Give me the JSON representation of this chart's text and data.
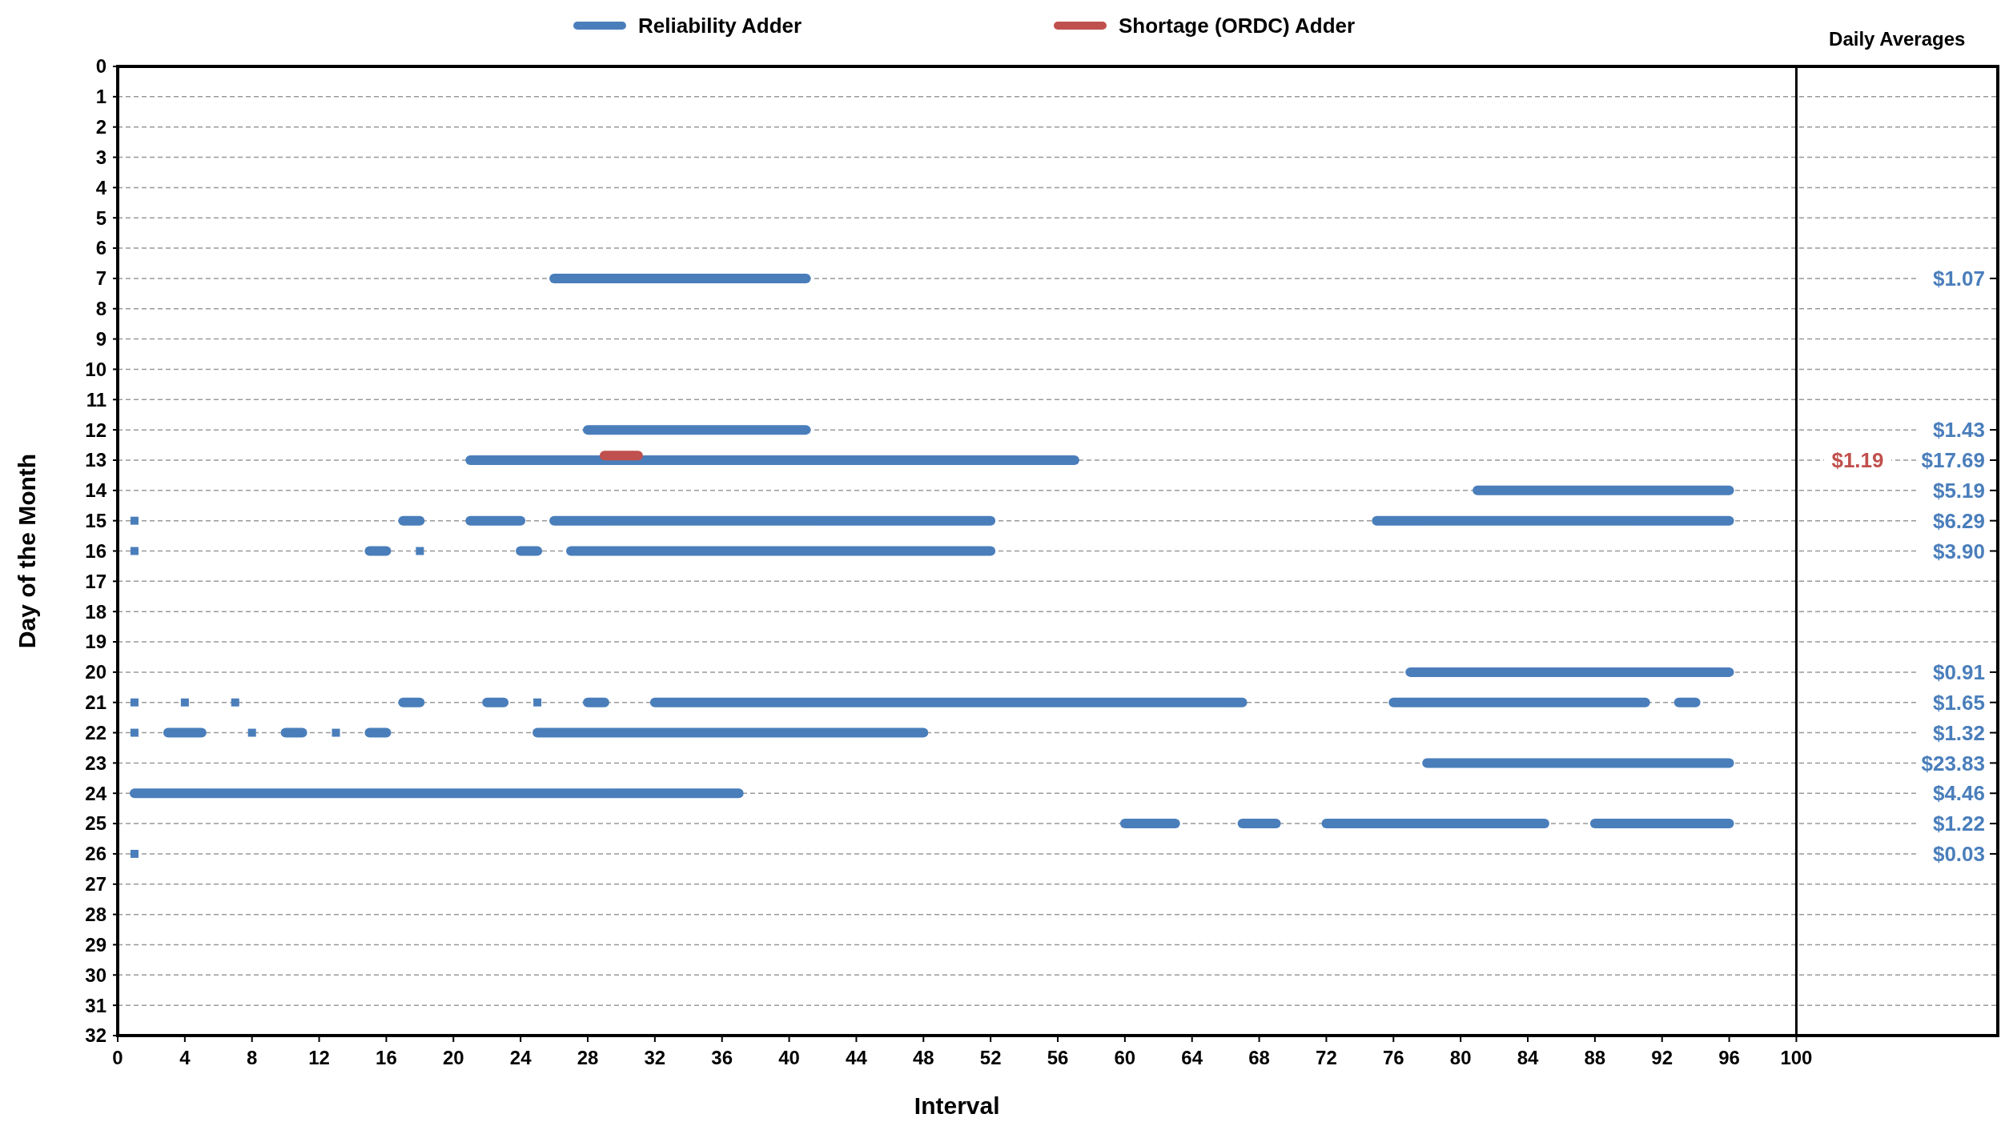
{
  "chart_data": {
    "type": "line",
    "xlabel": "Interval",
    "ylabel": "Day of the Month",
    "xlim": [
      0,
      112
    ],
    "xticks": [
      0,
      4,
      8,
      12,
      16,
      20,
      24,
      28,
      32,
      36,
      40,
      44,
      48,
      52,
      56,
      60,
      64,
      68,
      72,
      76,
      80,
      84,
      88,
      92,
      96,
      100
    ],
    "ylim": [
      32,
      0
    ],
    "yticks": [
      0,
      1,
      2,
      3,
      4,
      5,
      6,
      7,
      8,
      9,
      10,
      11,
      12,
      13,
      14,
      15,
      16,
      17,
      18,
      19,
      20,
      21,
      22,
      23,
      24,
      25,
      26,
      27,
      28,
      29,
      30,
      31,
      32
    ],
    "y2_categories": [
      null,
      null,
      null,
      null,
      null,
      null,
      null,
      "$1.07",
      null,
      null,
      null,
      null,
      "$1.43",
      "$17.69",
      "$5.19",
      "$6.29",
      "$3.90",
      null,
      null,
      null,
      "$0.91",
      "$1.65",
      "$1.32",
      "$23.83",
      "$4.46",
      "$1.22",
      "$0.03",
      null,
      null,
      null,
      null,
      null,
      null
    ],
    "annotations": [
      "$1.19"
    ],
    "grid": "y",
    "legend": "top",
    "line_style": "solid",
    "ref_lines": [
      {
        "axis": "x",
        "value": 100,
        "label": "Daily Averages",
        "color": "#000000"
      }
    ],
    "series": [
      {
        "name": "Reliability Adder",
        "color": "#4a7ebb",
        "x": [
          26,
          41
        ],
        "values": [
          7,
          7
        ]
      },
      {
        "color": "#4a7ebb",
        "x": [
          28,
          41
        ],
        "values": [
          12,
          12
        ]
      },
      {
        "color": "#4a7ebb",
        "x": [
          21,
          57
        ],
        "values": [
          13,
          13
        ]
      },
      {
        "color": "#4a7ebb",
        "x": [
          81,
          96
        ],
        "values": [
          14,
          14
        ]
      },
      {
        "color": "#4a7ebb",
        "x": [
          17,
          18
        ],
        "values": [
          15,
          15
        ]
      },
      {
        "color": "#4a7ebb",
        "x": [
          21,
          24
        ],
        "values": [
          15,
          15
        ]
      },
      {
        "color": "#4a7ebb",
        "x": [
          26,
          52
        ],
        "values": [
          15,
          15
        ]
      },
      {
        "color": "#4a7ebb",
        "x": [
          75,
          96
        ],
        "values": [
          15,
          15
        ]
      },
      {
        "color": "#4a7ebb",
        "x": [
          15,
          16
        ],
        "values": [
          16,
          16
        ]
      },
      {
        "color": "#4a7ebb",
        "x": [
          24,
          25
        ],
        "values": [
          16,
          16
        ]
      },
      {
        "color": "#4a7ebb",
        "x": [
          27,
          52
        ],
        "values": [
          16,
          16
        ]
      },
      {
        "color": "#4a7ebb",
        "x": [
          77,
          96
        ],
        "values": [
          20,
          20
        ]
      },
      {
        "color": "#4a7ebb",
        "x": [
          17,
          18
        ],
        "values": [
          21,
          21
        ]
      },
      {
        "color": "#4a7ebb",
        "x": [
          22,
          23
        ],
        "values": [
          21,
          21
        ]
      },
      {
        "color": "#4a7ebb",
        "x": [
          28,
          29
        ],
        "values": [
          21,
          21
        ]
      },
      {
        "color": "#4a7ebb",
        "x": [
          32,
          67
        ],
        "values": [
          21,
          21
        ]
      },
      {
        "color": "#4a7ebb",
        "x": [
          76,
          91
        ],
        "values": [
          21,
          21
        ]
      },
      {
        "color": "#4a7ebb",
        "x": [
          93,
          94
        ],
        "values": [
          21,
          21
        ]
      },
      {
        "color": "#4a7ebb",
        "x": [
          3,
          5
        ],
        "values": [
          22,
          22
        ]
      },
      {
        "color": "#4a7ebb",
        "x": [
          10,
          11
        ],
        "values": [
          22,
          22
        ]
      },
      {
        "color": "#4a7ebb",
        "x": [
          15,
          16
        ],
        "values": [
          22,
          22
        ]
      },
      {
        "color": "#4a7ebb",
        "x": [
          25,
          48
        ],
        "values": [
          22,
          22
        ]
      },
      {
        "color": "#4a7ebb",
        "x": [
          78,
          96
        ],
        "values": [
          23,
          23
        ]
      },
      {
        "color": "#4a7ebb",
        "x": [
          1,
          37
        ],
        "values": [
          24,
          24
        ]
      },
      {
        "color": "#4a7ebb",
        "x": [
          60,
          63
        ],
        "values": [
          25,
          25
        ]
      },
      {
        "color": "#4a7ebb",
        "x": [
          67,
          69
        ],
        "values": [
          25,
          25
        ]
      },
      {
        "color": "#4a7ebb",
        "x": [
          72,
          85
        ],
        "values": [
          25,
          25
        ]
      },
      {
        "color": "#4a7ebb",
        "x": [
          88,
          96
        ],
        "values": [
          25,
          25
        ]
      },
      {
        "type": "scatter",
        "marker": "square",
        "color": "#4a7ebb",
        "x": [
          1,
          1,
          18,
          1,
          4,
          7,
          25,
          1,
          8,
          13,
          1
        ],
        "values": [
          15,
          16,
          16,
          21,
          21,
          21,
          21,
          22,
          22,
          22,
          26
        ]
      },
      {
        "name": "Shortage (ORDC) Adder",
        "color": "#c0504d",
        "x": [
          29,
          31
        ],
        "values": [
          12.85,
          12.85
        ]
      }
    ]
  }
}
